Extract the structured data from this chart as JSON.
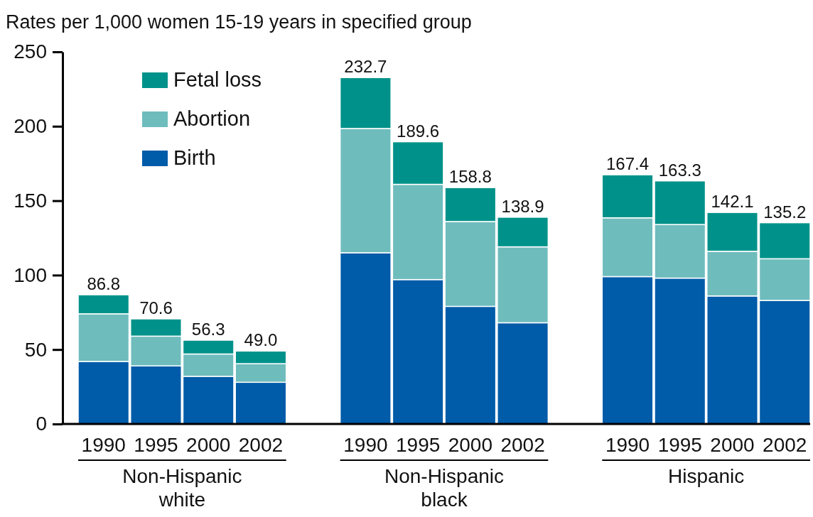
{
  "chart_data": {
    "type": "bar",
    "stacked": true,
    "ylabel": "Rates per 1,000 women 15-19 years in specified group",
    "categories": [
      "1990",
      "1995",
      "2000",
      "2002",
      null,
      "1990",
      "1995",
      "2000",
      "2002",
      null,
      "1990",
      "1995",
      "2000",
      "2002"
    ],
    "series": [
      {
        "name": "Birth",
        "color": "#005ba8",
        "values": [
          42,
          39,
          32,
          28,
          null,
          115,
          97,
          79,
          68,
          null,
          99,
          98,
          86,
          83
        ]
      },
      {
        "name": "Abortion",
        "color": "#6fbcbd",
        "values": [
          32,
          20,
          15,
          12.5,
          null,
          83.5,
          64,
          57,
          51,
          null,
          39.5,
          36,
          30,
          28
        ]
      },
      {
        "name": "Fetal loss",
        "color": "#00928a",
        "values": [
          12.8,
          11.6,
          9.3,
          8.5,
          null,
          34.2,
          28.6,
          22.8,
          19.9,
          null,
          28.9,
          29.3,
          26.1,
          24.2
        ]
      }
    ],
    "totals": [
      "86.8",
      "70.6",
      "56.3",
      "49.0",
      null,
      "232.7",
      "189.6",
      "158.8",
      "138.9",
      null,
      "167.4",
      "163.3",
      "142.1",
      "135.2"
    ],
    "annotations": [
      "Non-Hispanic white",
      "Non-Hispanic black",
      "Hispanic"
    ],
    "ylim": [
      0,
      250
    ],
    "yticks": [
      0,
      50,
      100,
      150,
      200,
      250
    ],
    "legend": "top left"
  }
}
